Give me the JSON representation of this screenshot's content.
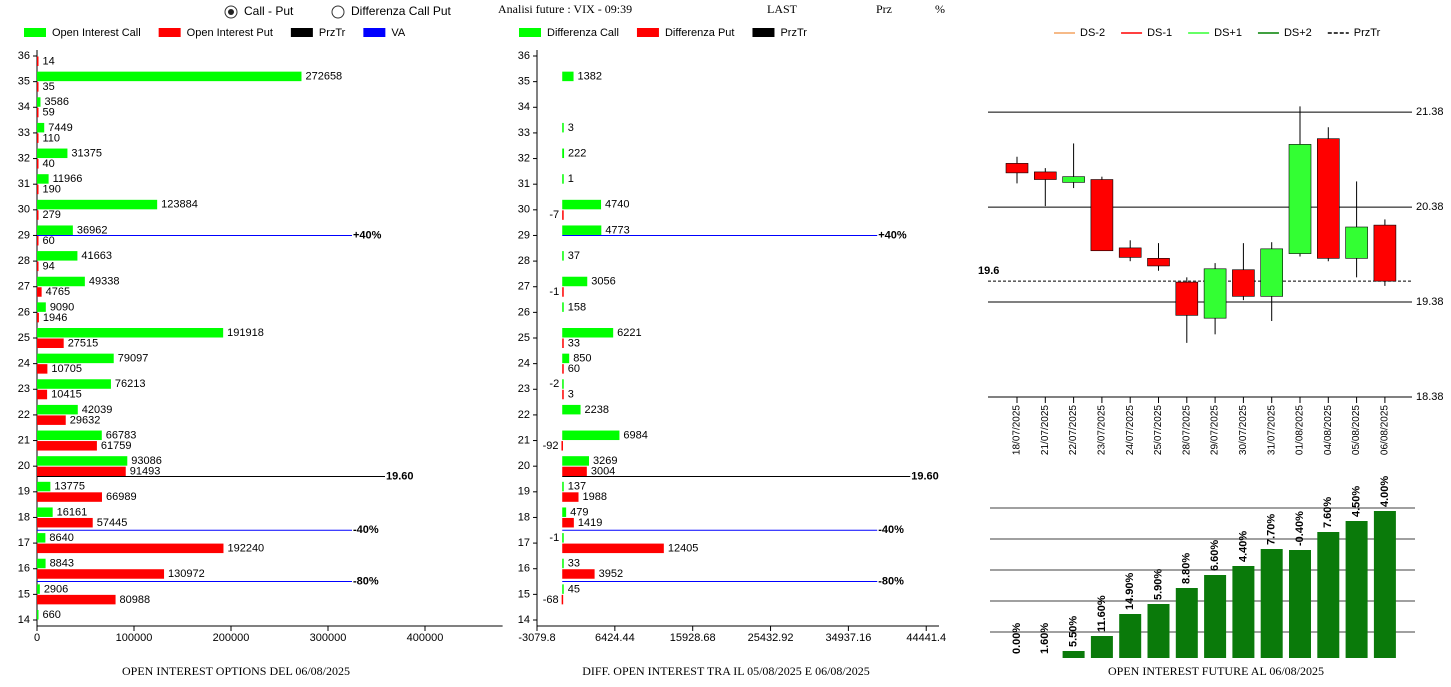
{
  "header": {
    "options": [
      "Call - Put",
      "Differenza Call Put"
    ],
    "selected": 0,
    "future": "Analisi future : VIX - 09:39",
    "last": "LAST",
    "prz": "Prz",
    "pct": "%"
  },
  "chart_data": [
    {
      "type": "hbar",
      "title": "OPEN INTEREST OPTIONS DEL 06/08/2025",
      "categories": [
        14,
        15,
        16,
        17,
        18,
        19,
        20,
        21,
        22,
        23,
        24,
        25,
        26,
        27,
        28,
        29,
        30,
        31,
        32,
        33,
        34,
        35,
        36
      ],
      "series": [
        {
          "name": "Open Interest Call",
          "color": "#00ff00",
          "values": [
            660,
            2906,
            8843,
            8640,
            16161,
            13775,
            93086,
            66783,
            42039,
            76213,
            79097,
            191918,
            9090,
            49338,
            41663,
            36962,
            123884,
            11966,
            31375,
            7449,
            3586,
            272658,
            null
          ]
        },
        {
          "name": "Open Interest Put",
          "color": "#ff0000",
          "values": [
            null,
            80988,
            130972,
            192240,
            57445,
            66989,
            91493,
            61759,
            29632,
            10415,
            10705,
            27515,
            1946,
            4765,
            94,
            60,
            279,
            190,
            40,
            110,
            59,
            35,
            14
          ]
        }
      ],
      "legend_extra": [
        {
          "name": "PrzTr",
          "color": "#000000"
        },
        {
          "name": "VA",
          "color": "#0000ff"
        }
      ],
      "lines": [
        {
          "strike": 19.6,
          "text": "19.60",
          "color": "#000000"
        },
        {
          "strike": 29,
          "text": "+40%",
          "color": "#0000ff"
        },
        {
          "strike": 17.5,
          "text": "-40%",
          "color": "#0000ff"
        },
        {
          "strike": 15.5,
          "text": "-80%",
          "color": "#0000ff"
        }
      ],
      "xlim": [
        0,
        480000
      ],
      "xticks": [
        0,
        100000,
        200000,
        300000,
        400000
      ]
    },
    {
      "type": "hbar",
      "title": "DIFF. OPEN INTEREST TRA IL 05/08/2025 E 06/08/2025",
      "categories": [
        14,
        15,
        16,
        17,
        18,
        19,
        20,
        21,
        22,
        23,
        24,
        25,
        26,
        27,
        28,
        29,
        30,
        31,
        32,
        33,
        34,
        35,
        36
      ],
      "series": [
        {
          "name": "Differenza Call",
          "color": "#00ff00",
          "values": [
            null,
            45,
            33,
            -1,
            479,
            137,
            3269,
            6984,
            2238,
            -2,
            850,
            6221,
            158,
            3056,
            37,
            4773,
            4740,
            1,
            222,
            3,
            null,
            1382,
            null
          ]
        },
        {
          "name": "Differenza Put",
          "color": "#ff0000",
          "values": [
            null,
            -68,
            3952,
            12405,
            1419,
            1988,
            3004,
            -92,
            null,
            3,
            60,
            33,
            null,
            -1,
            null,
            null,
            -7,
            null,
            null,
            null,
            null,
            null,
            null
          ]
        }
      ],
      "legend_extra": [
        {
          "name": "PrzTr",
          "color": "#000000"
        }
      ],
      "lines": [
        {
          "strike": 19.6,
          "text": "19.60",
          "color": "#000000"
        },
        {
          "strike": 29,
          "text": "+40%",
          "color": "#0000ff"
        },
        {
          "strike": 17.5,
          "text": "-40%",
          "color": "#0000ff"
        },
        {
          "strike": 15.5,
          "text": "-80%",
          "color": "#0000ff"
        }
      ],
      "xlim": [
        -3079.8,
        46000
      ],
      "xticks": [
        -3079.8,
        6424.44,
        15928.68,
        25432.92,
        34937.16,
        44441.4
      ]
    },
    {
      "type": "candlestick",
      "categories": [
        "18/07/2025",
        "21/07/2025",
        "22/07/2025",
        "23/07/2025",
        "24/07/2025",
        "25/07/2025",
        "28/07/2025",
        "29/07/2025",
        "30/07/2025",
        "31/07/2025",
        "01/08/2025",
        "04/08/2025",
        "05/08/2025",
        "06/08/2025"
      ],
      "open": [
        20.84,
        20.75,
        20.64,
        20.67,
        19.95,
        19.84,
        19.59,
        19.21,
        19.72,
        19.44,
        19.89,
        21.1,
        19.84,
        20.19
      ],
      "high": [
        20.91,
        20.79,
        21.05,
        20.7,
        20.03,
        20.0,
        19.64,
        19.79,
        20.0,
        20.01,
        21.44,
        21.22,
        20.65,
        20.25
      ],
      "low": [
        20.63,
        20.39,
        20.58,
        19.92,
        19.81,
        19.71,
        18.95,
        19.04,
        19.4,
        19.18,
        19.86,
        19.81,
        19.64,
        19.55
      ],
      "close": [
        20.74,
        20.67,
        20.7,
        19.92,
        19.85,
        19.76,
        19.24,
        19.73,
        19.44,
        19.94,
        21.04,
        19.84,
        20.17,
        19.6
      ],
      "up_color": "#33ff33",
      "down_color": "#ff0000",
      "legend": [
        {
          "name": "DS-2",
          "color": "#f4a460"
        },
        {
          "name": "DS-1",
          "color": "#ff0000"
        },
        {
          "name": "DS+1",
          "color": "#33ff33"
        },
        {
          "name": "DS+2",
          "color": "#008000"
        },
        {
          "name": "PrzTr",
          "color": "#000000",
          "dash": true
        }
      ],
      "przTr": 19.6,
      "ylim": [
        18.38,
        21.56
      ],
      "yticks": [
        18.38,
        19.38,
        20.38,
        21.38
      ]
    },
    {
      "type": "bar",
      "title": "OPEN INTEREST FUTURE AL 06/08/2025",
      "values": [
        0,
        0,
        7,
        22,
        44,
        54,
        70,
        83,
        92,
        109,
        108,
        126,
        137,
        147
      ],
      "bar_labels": [
        "0.00%",
        "1.60%",
        "5.50%",
        "11.60%",
        "14.90%",
        "5.90%",
        "8.80%",
        "6.60%",
        "4.40%",
        "7.70%",
        "-0.40%",
        "7.60%",
        "4.50%",
        "4.00%"
      ],
      "color": "#0a7a0a",
      "ylim": [
        0,
        160
      ],
      "gridlines": [
        26,
        57,
        88,
        119,
        150
      ]
    }
  ]
}
